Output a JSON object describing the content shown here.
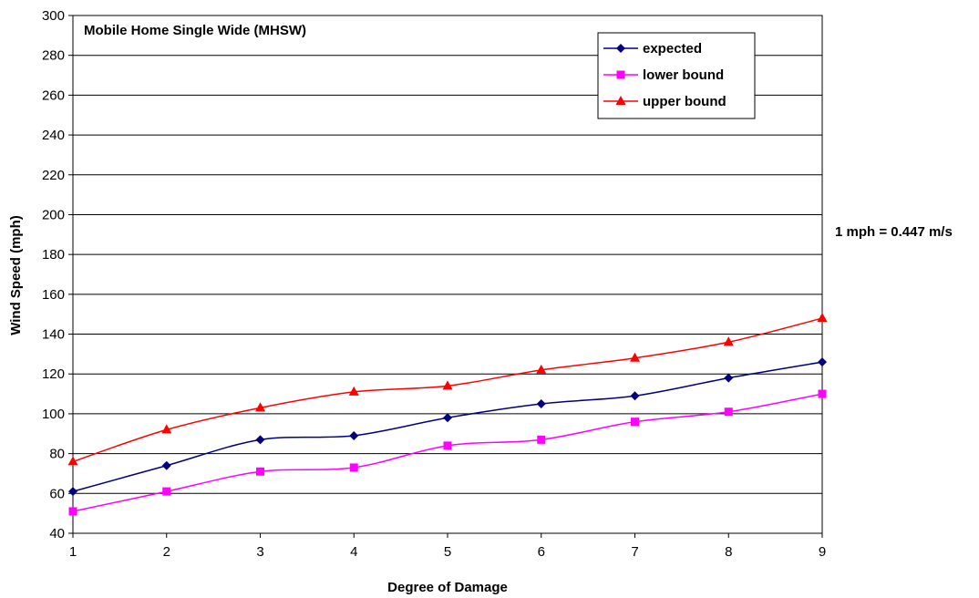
{
  "chart_data": {
    "type": "line",
    "title": "Mobile Home Single Wide (MHSW)",
    "xlabel": "Degree of Damage",
    "ylabel": "Wind Speed (mph)",
    "annotation": "1 mph = 0.447 m/s",
    "x": [
      1,
      2,
      3,
      4,
      5,
      6,
      7,
      8,
      9
    ],
    "xlim": [
      1,
      9
    ],
    "ylim": [
      40,
      300
    ],
    "yticks": [
      40,
      60,
      80,
      100,
      120,
      140,
      160,
      180,
      200,
      220,
      240,
      260,
      280,
      300
    ],
    "grid": "horizontal",
    "legend_position": "top-right",
    "series": [
      {
        "name": "expected",
        "color": "#000080",
        "marker": "diamond",
        "values": [
          61,
          74,
          87,
          89,
          98,
          105,
          109,
          118,
          126
        ]
      },
      {
        "name": "lower bound",
        "color": "#ff00ff",
        "marker": "square",
        "values": [
          51,
          61,
          71,
          73,
          84,
          87,
          96,
          101,
          110
        ]
      },
      {
        "name": "upper bound",
        "color": "#ff0000",
        "marker": "triangle",
        "values": [
          76,
          92,
          103,
          111,
          114,
          122,
          128,
          136,
          148
        ]
      }
    ]
  }
}
